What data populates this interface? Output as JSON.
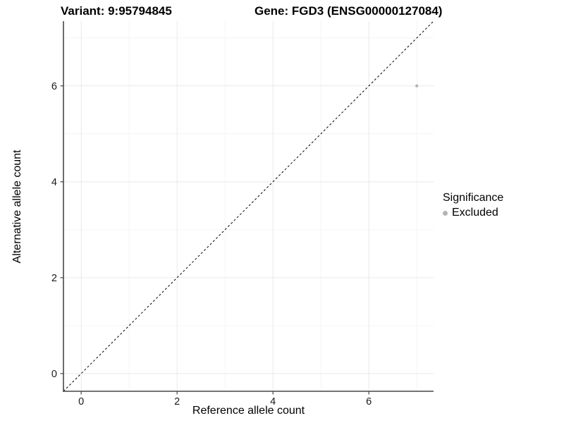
{
  "titles": {
    "variant": "Variant: 9:95794845",
    "gene": "Gene: FGD3 (ENSG00000127084)"
  },
  "chart_data": {
    "type": "scatter",
    "xlabel": "Reference allele count",
    "ylabel": "Alternative allele count",
    "xlim": [
      -0.37,
      7.35
    ],
    "ylim": [
      -0.37,
      7.35
    ],
    "x_ticks": [
      0,
      2,
      4,
      6
    ],
    "y_ticks": [
      0,
      2,
      4,
      6
    ],
    "x_minor_ticks": [
      1,
      3,
      5,
      7
    ],
    "y_minor_ticks": [
      1,
      3,
      5,
      7
    ],
    "grid": true,
    "points": [
      {
        "x": 7,
        "y": 6,
        "series": "Excluded"
      }
    ],
    "reference_line": {
      "kind": "identity",
      "style": "dashed",
      "color": "#000000"
    },
    "legend": {
      "title": "Significance",
      "position": "right",
      "items": [
        {
          "label": "Excluded",
          "color": "#b4b4b4"
        }
      ]
    },
    "colors": {
      "point": "#b4b4b4",
      "grid_major": "#e9e9e9",
      "grid_minor": "#f4f4f4",
      "axis_line": "#474747",
      "tick_text": "#1a1a1a"
    },
    "point_radius": 2.2,
    "tick_font_size": 14.5
  }
}
